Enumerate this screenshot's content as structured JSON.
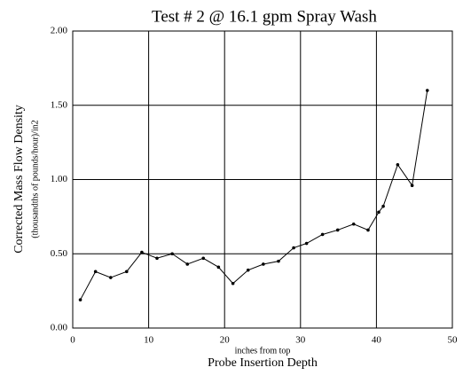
{
  "chart_data": {
    "type": "line",
    "title": "Test # 2 @ 16.1 gpm Spray Wash",
    "y_label": "Corrected Mass Flow Density",
    "y_sublabel": "(thousandths of pounds/hour)/in2",
    "x_sublabel": "inches from top",
    "x_label": "Probe Insertion Depth",
    "x": [
      1,
      3,
      5,
      7.1,
      9.1,
      11.1,
      13.1,
      15.1,
      17.2,
      19.2,
      21.1,
      23.1,
      25.1,
      27.1,
      29.1,
      30.8,
      32.9,
      34.9,
      37,
      38.9,
      40.3,
      40.9,
      42.8,
      44.7,
      46.7
    ],
    "series": [
      {
        "name": "Mass flow density",
        "color": "#000000",
        "values": [
          0.19,
          0.38,
          0.34,
          0.38,
          0.51,
          0.47,
          0.5,
          0.43,
          0.47,
          0.41,
          0.3,
          0.39,
          0.43,
          0.45,
          0.54,
          0.57,
          0.63,
          0.66,
          0.7,
          0.66,
          0.78,
          0.82,
          1.1,
          0.96,
          1.6
        ]
      }
    ],
    "xlim": [
      0,
      50
    ],
    "xticks": [
      0,
      10,
      20,
      30,
      40,
      50
    ],
    "ylim": [
      0,
      2
    ],
    "yticks": [
      {
        "value": 0,
        "label": "0.00"
      },
      {
        "value": 0.5,
        "label": "0.50"
      },
      {
        "value": 1,
        "label": "1.00"
      },
      {
        "value": 1.5,
        "label": "1.50"
      },
      {
        "value": 2,
        "label": "2.00"
      }
    ],
    "grid": true
  }
}
